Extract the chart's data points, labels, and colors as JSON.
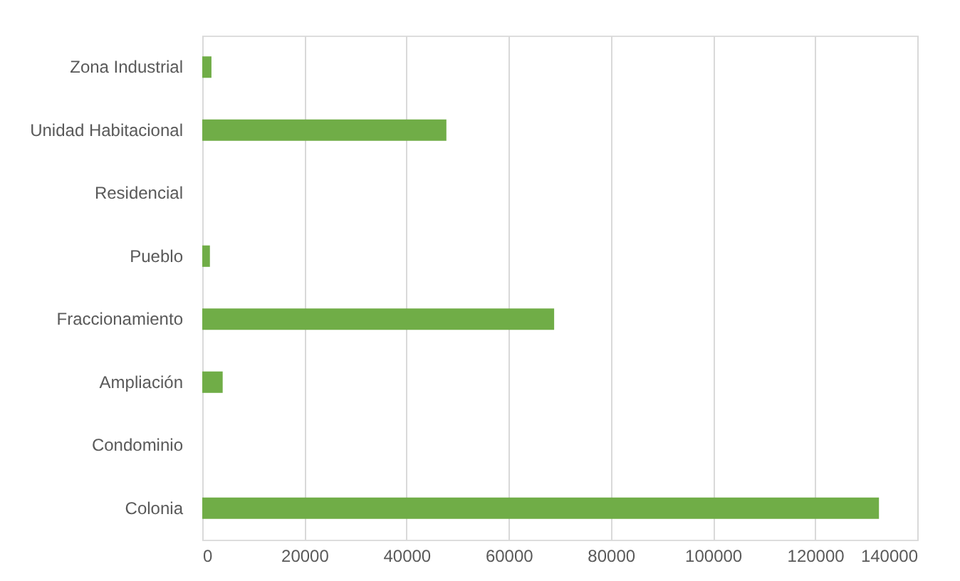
{
  "chart_data": {
    "type": "bar",
    "orientation": "horizontal",
    "categories": [
      "Zona Industrial",
      "Unidad Habitacional",
      "Residencial",
      "Pueblo",
      "Fraccionamiento",
      "Ampliación",
      "Condominio",
      "Colonia"
    ],
    "values": [
      1800,
      47800,
      0,
      1500,
      68900,
      4000,
      0,
      132500
    ],
    "color": "#70ad47",
    "xlim": [
      0,
      140000
    ],
    "xticks": [
      0,
      20000,
      40000,
      60000,
      80000,
      100000,
      120000,
      140000
    ],
    "grid": "x"
  }
}
